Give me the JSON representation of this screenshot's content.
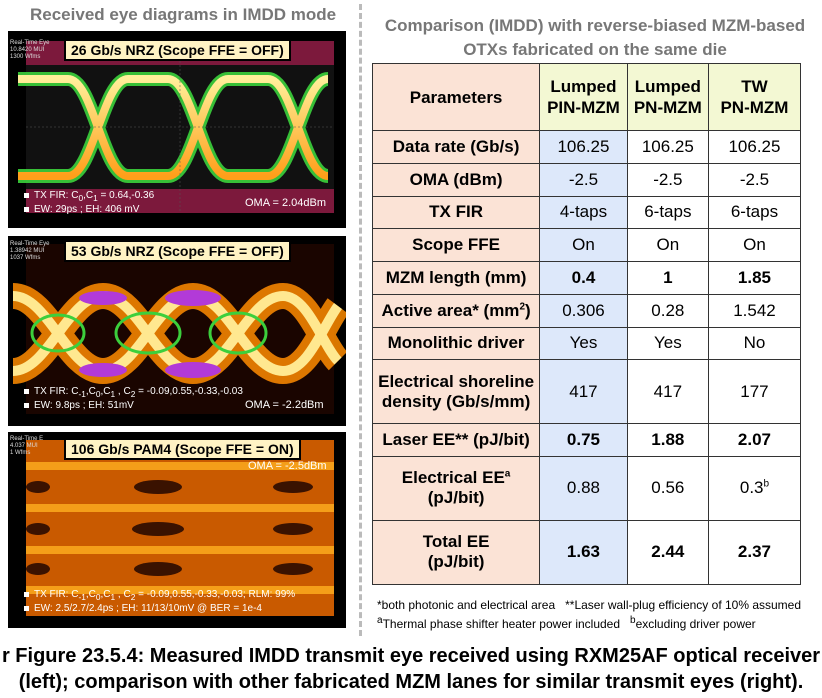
{
  "left_title": "Received eye diagrams in IMDD mode",
  "right_title_line1": "Comparison (IMDD) with reverse-biased MZM-based",
  "right_title_line2": "OTXs fabricated on the same die",
  "panels": [
    {
      "title": "26 Gb/s NRZ (Scope FFE = OFF)",
      "rt": "Real-Time Eye\n10.8420 MUI\n1300 Wfms",
      "ann1": "TX FIR: C0,C1 = 0.64,-0.36",
      "ann2": "EW: 29ps ; EH: 406 mV",
      "oma": "OMA = 2.04dBm"
    },
    {
      "title": "53 Gb/s NRZ (Scope FFE = OFF)",
      "rt": "Real-Time Eye\n1.38942 MUI\n1037 Wfms",
      "ann1": "TX FIR: C-1,C0,C1 , C2 = -0.09,0.55,-0.33,-0.03",
      "ann2": "EW: 9.8ps ; EH: 51mV",
      "oma": "OMA = -2.2dBm"
    },
    {
      "title": "106 Gb/s PAM4 (Scope FFE = ON)",
      "rt": "Real-Time E\n4.037 MUI\n1 Wfms",
      "ann1": "TX FIR: C-1,C0,C1 , C2 = -0.09,0.55,-0.33,-0.03; RLM: 99%",
      "ann2": "EW: 2.5/2.7/2.4ps ; EH: 11/13/10mV @ BER = 1e-4",
      "oma": "OMA = -2.5dBm"
    }
  ],
  "table": {
    "headers": [
      "Parameters",
      "Lumped\nPIN-MZM",
      "Lumped\nPN-MZM",
      "TW\nPN-MZM"
    ],
    "rows": [
      {
        "param": "Data rate (Gb/s)",
        "v": [
          "106.25",
          "106.25",
          "106.25"
        ],
        "bold": false
      },
      {
        "param": "OMA (dBm)",
        "v": [
          "-2.5",
          "-2.5",
          "-2.5"
        ],
        "bold": false
      },
      {
        "param": "TX FIR",
        "v": [
          "4-taps",
          "6-taps",
          "6-taps"
        ],
        "bold": false
      },
      {
        "param": "Scope FFE",
        "v": [
          "On",
          "On",
          "On"
        ],
        "bold": false
      },
      {
        "param": "MZM length (mm)",
        "v": [
          "0.4",
          "1",
          "1.85"
        ],
        "bold": true
      },
      {
        "param": "Active area* (mm²)",
        "v": [
          "0.306",
          "0.28",
          "1.542"
        ],
        "bold": false
      },
      {
        "param": "Monolithic driver",
        "v": [
          "Yes",
          "Yes",
          "No"
        ],
        "bold": false
      },
      {
        "param": "Electrical shoreline density (Gb/s/mm)",
        "v": [
          "417",
          "417",
          "177"
        ],
        "bold": false
      },
      {
        "param": "Laser EE** (pJ/bit)",
        "v": [
          "0.75",
          "1.88",
          "2.07"
        ],
        "bold": true
      },
      {
        "param": "Electrical EEa (pJ/bit)",
        "v": [
          "0.88",
          "0.56",
          "0.3b"
        ],
        "bold": false
      },
      {
        "param": "Total EE (pJ/bit)",
        "v": [
          "1.63",
          "2.44",
          "2.37"
        ],
        "bold": true
      }
    ]
  },
  "footnote1": "*both photonic and electrical area   **Laser wall-plug efficiency of 10% assumed",
  "footnote2": "aThermal phase shifter heater power included   bexcluding driver power",
  "caption_line1": "r Figure 23.5.4: Measured IMDD transmit eye received using RXM25AF optical receiver",
  "caption_line2": "(left); comparison with other fabricated MZM lanes for similar transmit eyes (right)."
}
